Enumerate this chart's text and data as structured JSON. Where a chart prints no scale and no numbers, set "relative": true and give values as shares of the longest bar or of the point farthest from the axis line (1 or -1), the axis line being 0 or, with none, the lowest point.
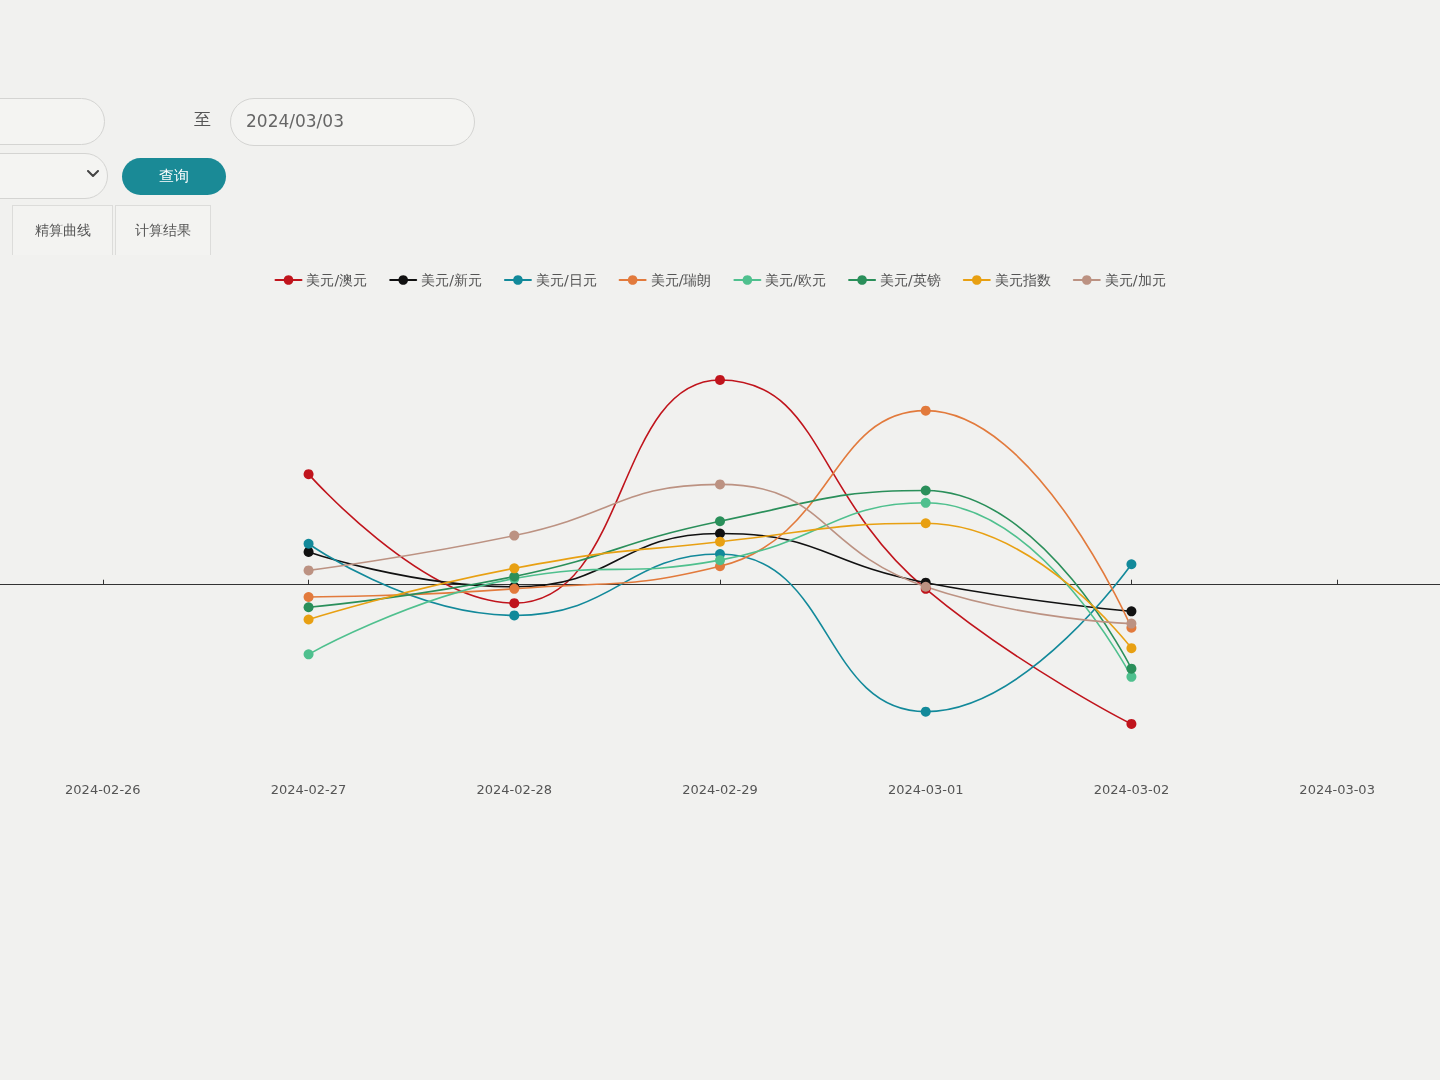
{
  "chart_data": {
    "type": "line",
    "relative": true,
    "categories": [
      "2024-02-26",
      "2024-02-27",
      "2024-02-28",
      "2024-02-29",
      "2024-03-01",
      "2024-03-02",
      "2024-03-03"
    ],
    "series": [
      {
        "name": "美元/澳元",
        "color": "#c0141c",
        "values": [
          null,
          0.54,
          -0.09,
          1,
          -0.02,
          -0.68,
          null
        ]
      },
      {
        "name": "美元/新元",
        "color": "#111111",
        "values": [
          null,
          0.16,
          -0.01,
          0.25,
          0.01,
          -0.13,
          null
        ]
      },
      {
        "name": "美元/日元",
        "color": "#12899a",
        "values": [
          null,
          0.2,
          -0.15,
          0.15,
          -0.62,
          0.1,
          null
        ]
      },
      {
        "name": "美元/瑞朗",
        "color": "#e27a3c",
        "values": [
          null,
          -0.06,
          -0.02,
          0.09,
          0.85,
          -0.21,
          null
        ]
      },
      {
        "name": "美元/欧元",
        "color": "#4fc08e",
        "values": [
          null,
          -0.34,
          0.03,
          0.12,
          0.4,
          -0.45,
          null
        ]
      },
      {
        "name": "美元/英镑",
        "color": "#2a8f5a",
        "values": [
          null,
          -0.11,
          0.04,
          0.31,
          0.46,
          -0.41,
          null
        ]
      },
      {
        "name": "美元指数",
        "color": "#e8a012",
        "values": [
          null,
          -0.17,
          0.08,
          0.21,
          0.3,
          -0.31,
          null
        ]
      },
      {
        "name": "美元/加元",
        "color": "#bc9282",
        "values": [
          null,
          0.07,
          0.24,
          0.49,
          -0.01,
          -0.19,
          null
        ]
      }
    ],
    "legend": "top",
    "marker": "circle",
    "line_style": "solid",
    "annotations": [
      "至",
      "2024/03/03",
      "查询",
      "精算曲线",
      "计算结果"
    ]
  }
}
